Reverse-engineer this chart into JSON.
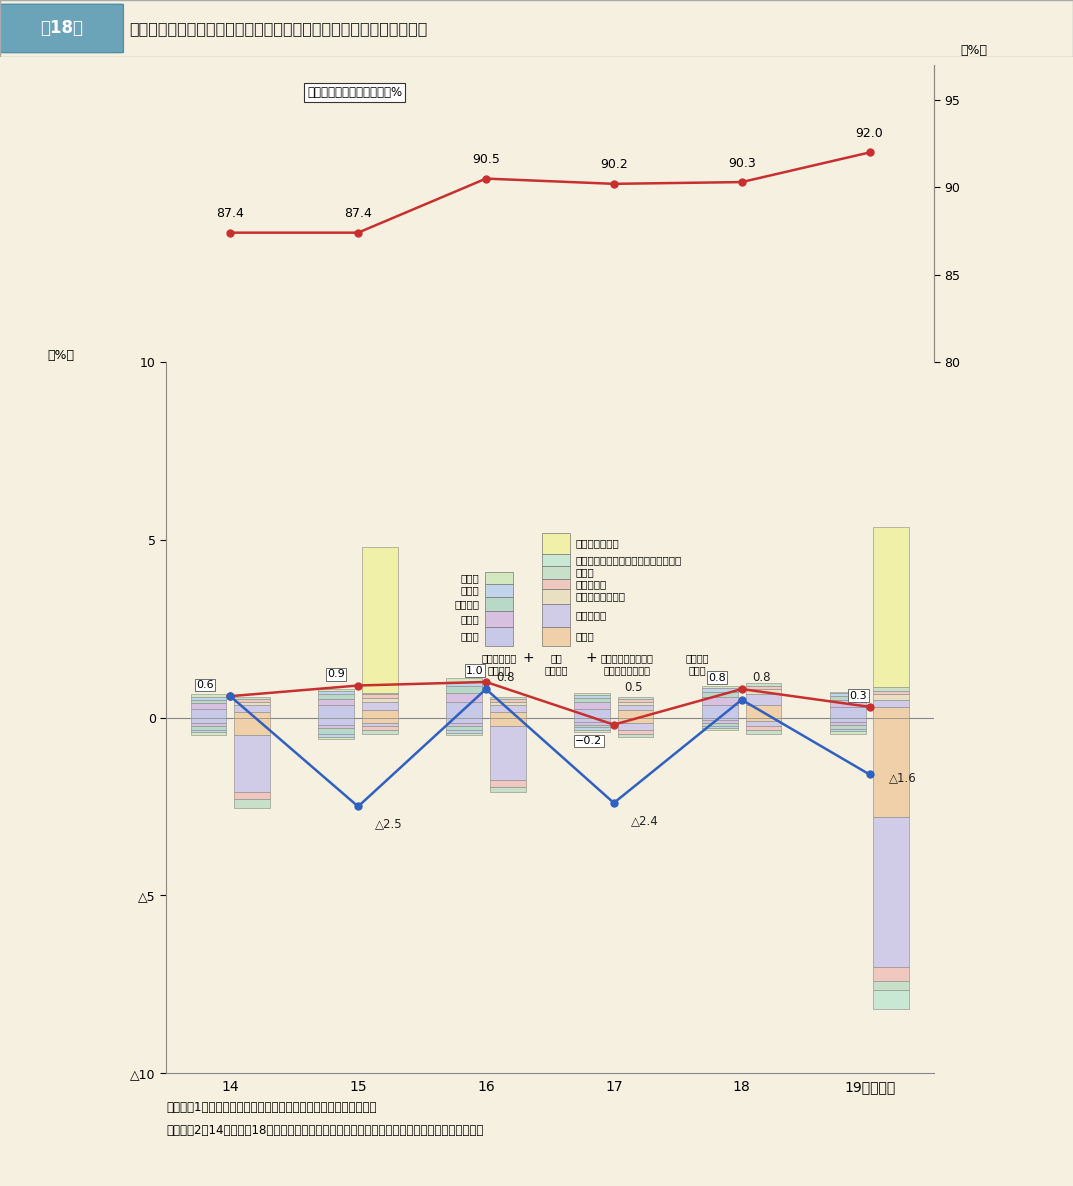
{
  "title_box": "第18図",
  "title_main": "経常収支比率を構成する分子及び分母の増減状況（その３　市町村）",
  "years": [
    14,
    15,
    16,
    17,
    18,
    19
  ],
  "line_ratio_values": [
    87.4,
    87.4,
    90.5,
    90.2,
    90.3,
    92.0
  ],
  "line_ratio_label": "経常収支比率（右目盛）　%",
  "right_ylim": [
    80,
    95
  ],
  "right_yticks": [
    80,
    85,
    90,
    95
  ],
  "bar_ylim": [
    -10,
    10
  ],
  "bar_yticks": [
    -10,
    -5,
    0,
    5,
    10
  ],
  "red_line_values": [
    0.6,
    0.9,
    1.0,
    -0.2,
    0.8,
    0.3
  ],
  "blue_line_values": [
    0.6,
    -2.5,
    0.8,
    -2.4,
    0.5,
    -1.6
  ],
  "red_labels": [
    "0.6",
    "0.9",
    "1.0",
    "−0.2",
    "0.8",
    "0.3"
  ],
  "blue_labels": [
    "△2.5",
    "△2.4",
    "△1.6"
  ],
  "blue_label_indices": [
    1,
    3,
    5
  ],
  "extra_labels_near_zero": [
    "0.8",
    "0.5",
    "0.8"
  ],
  "extra_label_indices": [
    2,
    3,
    4
  ],
  "bg_color": "#f5f0e0",
  "chart_bg": "#f5f0e0",
  "colors": {
    "jinken": "#c8c8e8",
    "fujo": "#d8c0e0",
    "hojohi": "#b8d8c8",
    "kosaihi": "#c0d4ec",
    "sonota_e": "#d4e8c0",
    "chihozei": "#f0d0a8",
    "kofuzei": "#d0cce8",
    "tokurei": "#e8e0c0",
    "yojozei": "#f0c8c0",
    "sonota_r": "#c8e0c8",
    "genzei": "#c8e8d4",
    "rinji": "#f0f0a8"
  },
  "exp_pos": [
    [
      0.25,
      0.15,
      0.1,
      0.08,
      0.07
    ],
    [
      0.35,
      0.18,
      0.12,
      0.1,
      0.05
    ],
    [
      0.45,
      0.25,
      0.18,
      0.12,
      0.1
    ],
    [
      0.25,
      0.18,
      0.12,
      0.08,
      0.07
    ],
    [
      0.35,
      0.22,
      0.15,
      0.12,
      0.06
    ],
    [
      0.3,
      0.18,
      0.12,
      0.08,
      0.05
    ]
  ],
  "exp_neg": [
    [
      -0.15,
      -0.1,
      -0.1,
      -0.05,
      -0.1
    ],
    [
      -0.2,
      -0.1,
      -0.15,
      -0.1,
      -0.05
    ],
    [
      -0.15,
      -0.1,
      -0.1,
      -0.08,
      -0.07
    ],
    [
      -0.12,
      -0.08,
      -0.08,
      -0.06,
      -0.06
    ],
    [
      -0.08,
      -0.07,
      -0.08,
      -0.06,
      -0.06
    ],
    [
      -0.12,
      -0.1,
      -0.1,
      -0.07,
      -0.06
    ]
  ],
  "rev_pos_colors_order": [
    "chihozei",
    "kofuzei",
    "tokurei",
    "yojozei",
    "sonota_r",
    "genzei",
    "rinji"
  ],
  "rev_neg_colors_order": [
    "chihozei",
    "kofuzei",
    "yojozei",
    "sonota_r",
    "genzei"
  ],
  "rev_pos": [
    [
      0.15,
      0.2,
      0.1,
      0.08,
      0.05,
      0.0,
      0.0
    ],
    [
      0.2,
      0.25,
      0.1,
      0.1,
      0.05,
      0.0,
      4.1
    ],
    [
      0.15,
      0.2,
      0.1,
      0.08,
      0.05,
      0.0,
      0.0
    ],
    [
      0.2,
      0.15,
      0.1,
      0.08,
      0.05,
      0.0,
      0.0
    ],
    [
      0.35,
      0.3,
      0.15,
      0.1,
      0.08,
      0.0,
      0.0
    ],
    [
      0.3,
      0.2,
      0.15,
      0.1,
      0.1,
      0.0,
      4.5
    ]
  ],
  "rev_neg": [
    [
      -0.5,
      -1.6,
      -0.2,
      -0.25,
      0.0
    ],
    [
      -0.15,
      -0.1,
      -0.1,
      -0.1,
      0.0
    ],
    [
      -0.25,
      -1.5,
      -0.2,
      -0.15,
      0.0
    ],
    [
      -0.15,
      -0.2,
      -0.1,
      -0.1,
      0.0
    ],
    [
      -0.1,
      -0.15,
      -0.1,
      -0.1,
      0.0
    ],
    [
      -2.8,
      -4.2,
      -0.4,
      -0.25,
      -0.55
    ]
  ],
  "legend_left_labels": [
    "その他",
    "公債費",
    "補助費等",
    "扶助費",
    "人件費"
  ],
  "legend_left_colors": [
    "#d4e8c0",
    "#c0d4ec",
    "#b8d8c8",
    "#d8c0e0",
    "#c8c8e8"
  ],
  "legend_right_labels": [
    "臨時財政対策債",
    "減収補てん債特例分（減税補てん債）",
    "その他",
    "地方譲与税",
    "地方特例交付金等",
    "地方交付税",
    "地方税"
  ],
  "legend_right_colors": [
    "#f0f0a8",
    "#c8e8d4",
    "#c8e0c8",
    "#f0c8c0",
    "#e8e0c0",
    "#d0cce8",
    "#f0d0a8"
  ],
  "notes": [
    "（注）　1　棒グラフの数値は、各年度の対前年度増減率である。",
    "　　　　2　14年度から18年度の減収補てん債特例分の増減率は減税補てん債の増減率である。"
  ]
}
